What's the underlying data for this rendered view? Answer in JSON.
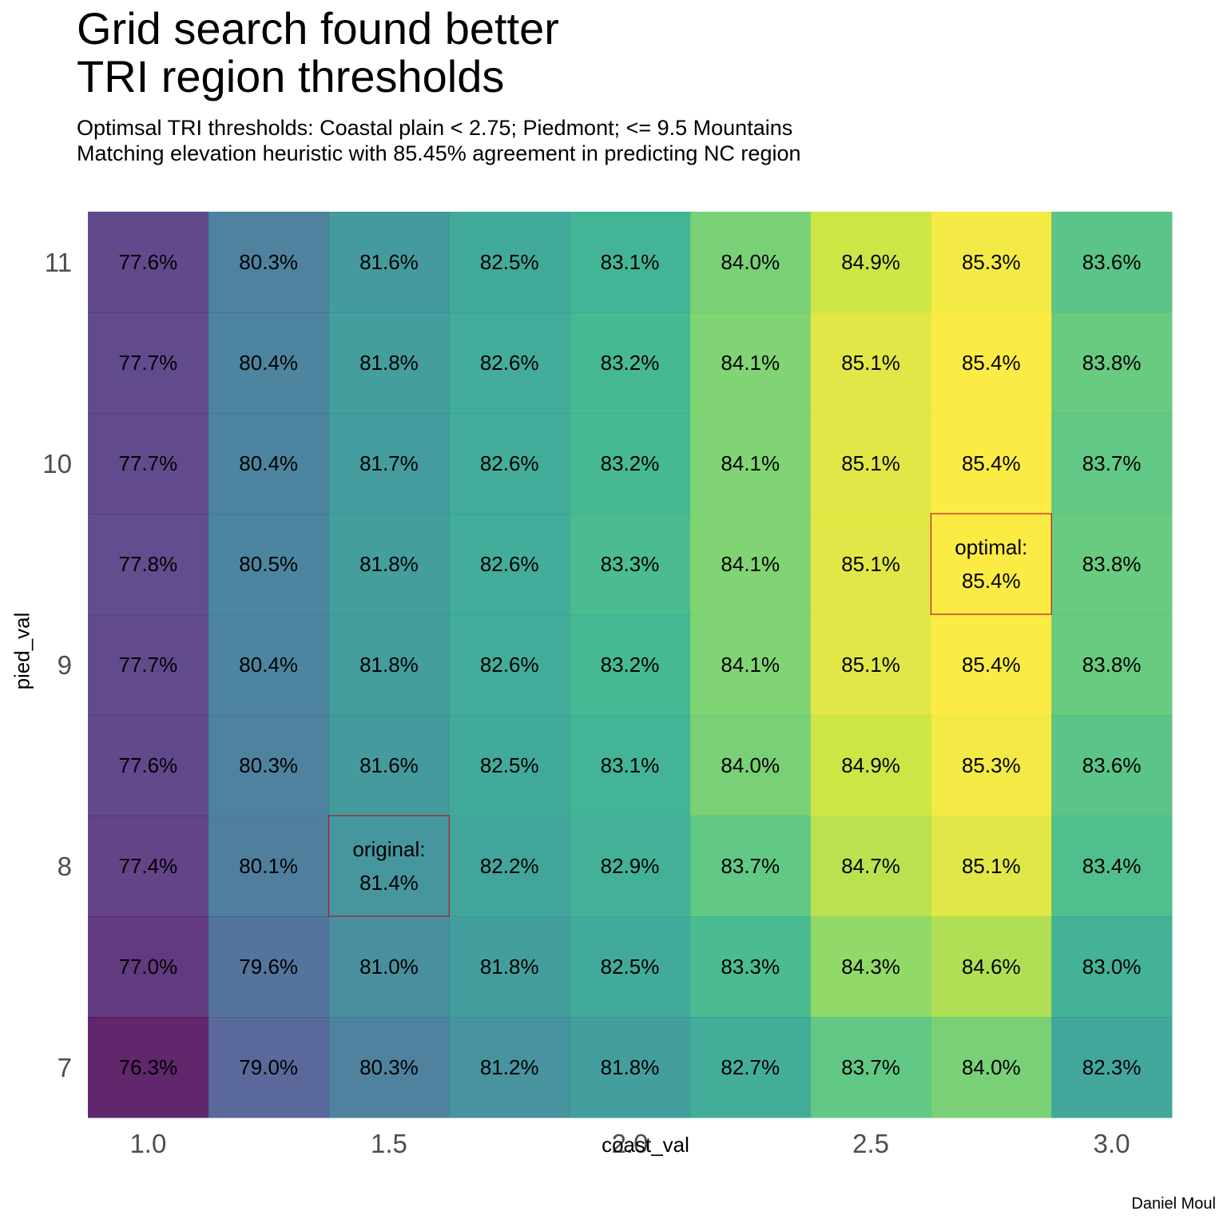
{
  "title_lines": [
    "Grid search found better",
    "TRI region thresholds"
  ],
  "subtitle_lines": [
    "Optimsal TRI thresholds: Coastal plain < 2.75; Piedmont; <= 9.5 Mountains",
    "Matching elevation heuristic with 85.45% agreement in predicting NC region"
  ],
  "caption": "Daniel Moul",
  "chart_data": {
    "type": "heatmap",
    "xlabel": "coast_val",
    "ylabel": "pied_val",
    "x": [
      1.0,
      1.25,
      1.5,
      1.75,
      2.0,
      2.25,
      2.5,
      2.75,
      3.0
    ],
    "y": [
      11,
      10.5,
      10,
      9.5,
      9,
      8.5,
      8,
      7.5,
      7
    ],
    "x_ticks": [
      "1.0",
      "1.5",
      "2.0",
      "2.5",
      "3.0"
    ],
    "x_tick_values": [
      1.0,
      1.5,
      2.0,
      2.5,
      3.0
    ],
    "y_ticks": [
      "11",
      "10",
      "9",
      "8",
      "7"
    ],
    "y_tick_values": [
      11,
      10,
      9,
      8,
      7
    ],
    "values": [
      [
        77.6,
        80.3,
        81.6,
        82.5,
        83.1,
        84.0,
        84.9,
        85.3,
        83.6
      ],
      [
        77.7,
        80.4,
        81.8,
        82.6,
        83.2,
        84.1,
        85.1,
        85.4,
        83.8
      ],
      [
        77.7,
        80.4,
        81.7,
        82.6,
        83.2,
        84.1,
        85.1,
        85.4,
        83.7
      ],
      [
        77.8,
        80.5,
        81.8,
        82.6,
        83.3,
        84.1,
        85.1,
        85.4,
        83.8
      ],
      [
        77.7,
        80.4,
        81.8,
        82.6,
        83.2,
        84.1,
        85.1,
        85.4,
        83.8
      ],
      [
        77.6,
        80.3,
        81.6,
        82.5,
        83.1,
        84.0,
        84.9,
        85.3,
        83.6
      ],
      [
        77.4,
        80.1,
        81.4,
        82.2,
        82.9,
        83.7,
        84.7,
        85.1,
        83.4
      ],
      [
        77.0,
        79.6,
        81.0,
        81.8,
        82.5,
        83.3,
        84.3,
        84.6,
        83.0
      ],
      [
        76.3,
        79.0,
        80.3,
        81.2,
        81.8,
        82.7,
        83.7,
        84.0,
        82.3
      ]
    ],
    "labels": [
      [
        "77.6%",
        "80.3%",
        "81.6%",
        "82.5%",
        "83.1%",
        "84.0%",
        "84.9%",
        "85.3%",
        "83.6%"
      ],
      [
        "77.7%",
        "80.4%",
        "81.8%",
        "82.6%",
        "83.2%",
        "84.1%",
        "85.1%",
        "85.4%",
        "83.8%"
      ],
      [
        "77.7%",
        "80.4%",
        "81.7%",
        "82.6%",
        "83.2%",
        "84.1%",
        "85.1%",
        "85.4%",
        "83.7%"
      ],
      [
        "77.8%",
        "80.5%",
        "81.8%",
        "82.6%",
        "83.3%",
        "84.1%",
        "85.1%",
        "optimal:\n85.4%",
        "83.8%"
      ],
      [
        "77.7%",
        "80.4%",
        "81.8%",
        "82.6%",
        "83.2%",
        "84.1%",
        "85.1%",
        "85.4%",
        "83.8%"
      ],
      [
        "77.6%",
        "80.3%",
        "81.6%",
        "82.5%",
        "83.1%",
        "84.0%",
        "84.9%",
        "85.3%",
        "83.6%"
      ],
      [
        "77.4%",
        "80.1%",
        "original:\n81.4%",
        "82.2%",
        "82.9%",
        "83.7%",
        "84.7%",
        "85.1%",
        "83.4%"
      ],
      [
        "77.0%",
        "79.6%",
        "81.0%",
        "81.8%",
        "82.5%",
        "83.3%",
        "84.3%",
        "84.6%",
        "83.0%"
      ],
      [
        "76.3%",
        "79.0%",
        "80.3%",
        "81.2%",
        "81.8%",
        "82.7%",
        "83.7%",
        "84.0%",
        "82.3%"
      ]
    ],
    "highlighted_cells": [
      {
        "x": 2.75,
        "y": 9.5
      },
      {
        "x": 1.5,
        "y": 8
      }
    ],
    "highlight_color": "#b2182b",
    "colormap": "viridis",
    "value_range": [
      76.3,
      85.4
    ],
    "grid": false,
    "legend": "none"
  }
}
